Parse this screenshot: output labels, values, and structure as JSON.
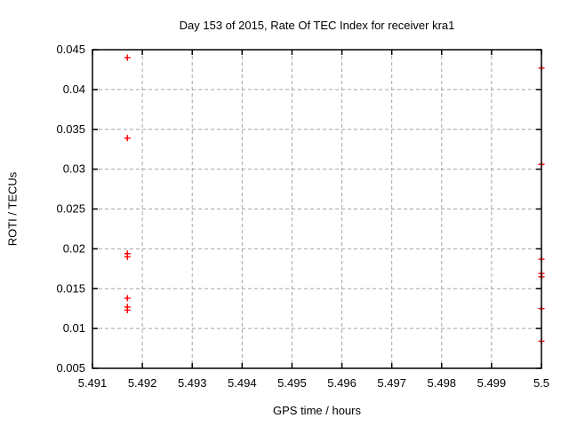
{
  "chart_data": {
    "type": "scatter",
    "title": "Day 153 of 2015, Rate Of TEC Index for receiver kra1",
    "xlabel": "GPS time / hours",
    "ylabel": "ROTI / TECUs",
    "xlim": [
      5.491,
      5.5
    ],
    "ylim": [
      0.005,
      0.045
    ],
    "xtick_values": [
      5.491,
      5.492,
      5.493,
      5.494,
      5.495,
      5.496,
      5.497,
      5.498,
      5.499,
      5.5
    ],
    "xtick_labels": [
      "5.491",
      "5.492",
      "5.493",
      "5.494",
      "5.495",
      "5.496",
      "5.497",
      "5.498",
      "5.499",
      "5.5"
    ],
    "ytick_values": [
      0.005,
      0.01,
      0.015,
      0.02,
      0.025,
      0.03,
      0.035,
      0.04,
      0.045
    ],
    "ytick_labels": [
      "0.005",
      "0.01",
      "0.015",
      "0.02",
      "0.025",
      "0.03",
      "0.035",
      "0.04",
      "0.045"
    ],
    "grid": true,
    "legend_position": "none",
    "marker": "plus",
    "series": [
      {
        "name": "ROTI",
        "x": [
          5.4917,
          5.4917,
          5.4917,
          5.4917,
          5.4917,
          5.4917,
          5.4917,
          5.5,
          5.5,
          5.5,
          5.5,
          5.5,
          5.5,
          5.5
        ],
        "y": [
          0.044,
          0.0339,
          0.0194,
          0.019,
          0.0138,
          0.0127,
          0.0123,
          0.0427,
          0.0306,
          0.0187,
          0.0169,
          0.0165,
          0.0125,
          0.0084
        ]
      }
    ]
  },
  "colors": {
    "marker": "#ff0000",
    "grid": "#a5a5a5",
    "axis": "#000000",
    "background": "#ffffff",
    "text": "#000000"
  }
}
